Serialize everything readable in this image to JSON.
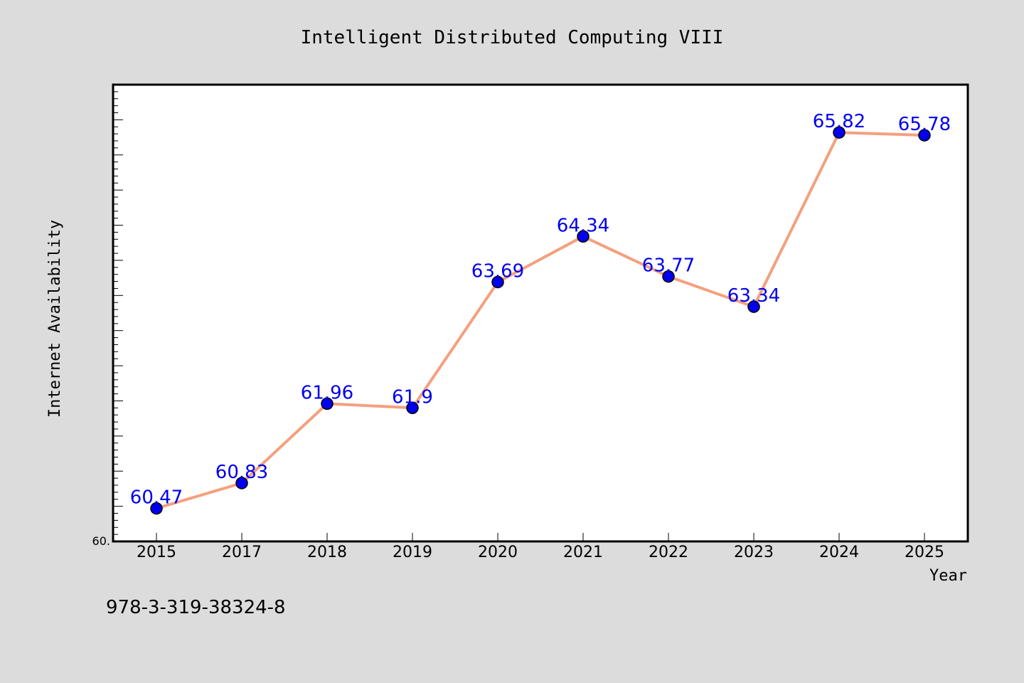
{
  "colors": {
    "background": "#dcdcdc",
    "plot_background": "#ffffff",
    "line": "#f4a07f",
    "marker": "#0000ee",
    "data_label": "#0000ee"
  },
  "footer": {
    "isbn": "978-3-319-38324-8"
  },
  "chart_data": {
    "type": "line",
    "title": "Intelligent Distributed Computing VIII",
    "xlabel": "Year",
    "ylabel": "Internet Availability",
    "categories": [
      "2015",
      "2017",
      "2018",
      "2019",
      "2020",
      "2021",
      "2022",
      "2023",
      "2024",
      "2025"
    ],
    "series": [
      {
        "values": [
          60.47,
          60.83,
          61.96,
          61.9,
          63.69,
          64.34,
          63.77,
          63.34,
          65.82,
          65.78
        ],
        "labels": [
          "60.47",
          "60.83",
          "61.96",
          "61.9",
          "63.69",
          "64.34",
          "63.77",
          "63.34",
          "65.82",
          "65.78"
        ]
      }
    ],
    "ylim": [
      60.0,
      66.5
    ],
    "y_tick_labels": [
      "60."
    ],
    "grid": false,
    "legend": "none"
  }
}
